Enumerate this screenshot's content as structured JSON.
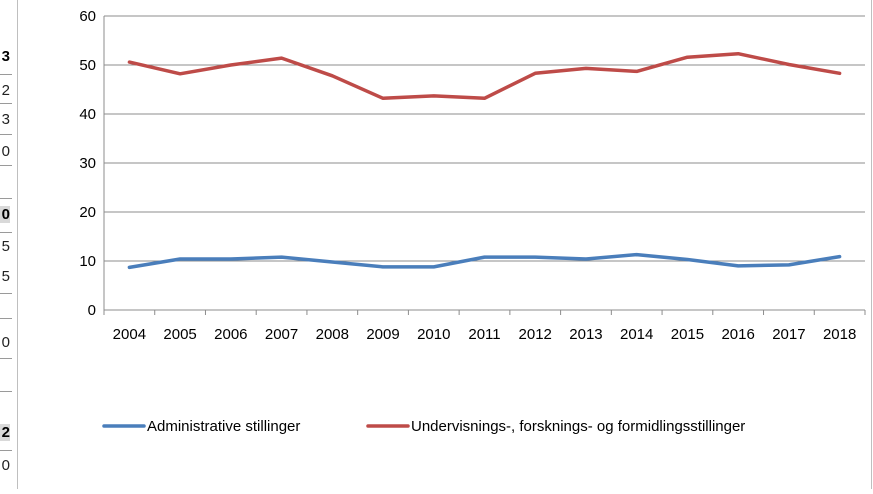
{
  "sheet_fragments": [
    {
      "text": "3",
      "bold": true,
      "shaded": false
    },
    {
      "text": "2",
      "bold": false,
      "shaded": false
    },
    {
      "text": "3",
      "bold": false,
      "shaded": false
    },
    {
      "text": "0",
      "bold": false,
      "shaded": false
    },
    {
      "text": "0",
      "bold": true,
      "shaded": true
    },
    {
      "text": "5",
      "bold": false,
      "shaded": false
    },
    {
      "text": "5",
      "bold": false,
      "shaded": false
    },
    {
      "text": "0",
      "bold": false,
      "shaded": false
    },
    {
      "text": "2",
      "bold": true,
      "shaded": true
    },
    {
      "text": "0",
      "bold": false,
      "shaded": false
    }
  ],
  "chart_data": {
    "type": "line",
    "x": [
      "2004",
      "2005",
      "2006",
      "2007",
      "2008",
      "2009",
      "2010",
      "2011",
      "2012",
      "2013",
      "2014",
      "2015",
      "2016",
      "2017",
      "2018"
    ],
    "yticks": [
      0,
      10,
      20,
      30,
      40,
      50,
      60
    ],
    "ylim": [
      0,
      60
    ],
    "grid": true,
    "legend_position": "bottom",
    "series": [
      {
        "name": "Administrative stillinger",
        "color": "#4a7ebb",
        "values": [
          8.7,
          10.4,
          10.4,
          10.8,
          9.8,
          8.8,
          8.8,
          10.8,
          10.8,
          10.4,
          11.3,
          10.3,
          9.0,
          9.2,
          10.9
        ]
      },
      {
        "name": "Undervisnings-, forsknings- og formidlingsstillinger",
        "color": "#be4b48",
        "values": [
          50.6,
          48.2,
          50.0,
          51.4,
          47.8,
          43.2,
          43.7,
          43.2,
          48.3,
          49.3,
          48.7,
          51.6,
          52.3,
          50.1,
          48.3
        ]
      }
    ]
  }
}
